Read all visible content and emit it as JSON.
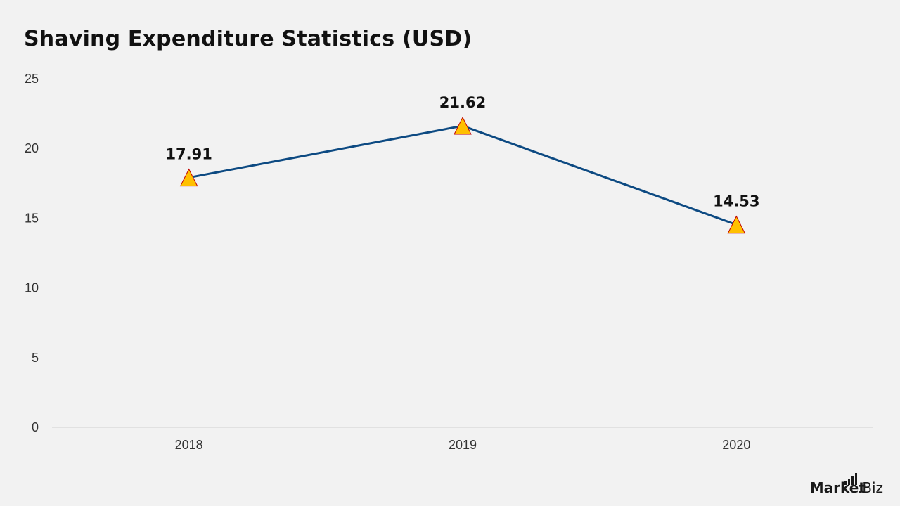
{
  "chart_data": {
    "type": "line",
    "title": "Shaving Expenditure Statistics (USD)",
    "categories": [
      "2018",
      "2019",
      "2020"
    ],
    "series": [
      {
        "values": [
          17.91,
          21.62,
          14.53
        ],
        "labels": [
          "17.91",
          "21.62",
          "14.53"
        ],
        "color": "#0d4a82",
        "marker": "triangle",
        "marker_fill": "#ffc000",
        "marker_stroke": "#c00000"
      }
    ],
    "ylim": [
      0,
      25
    ],
    "yticks": [
      0,
      5,
      10,
      15,
      20,
      25
    ],
    "ytick_labels": [
      "0",
      "5",
      "10",
      "15",
      "20",
      "25"
    ],
    "grid": false,
    "legend": "none"
  },
  "branding": {
    "name_main": "Market",
    "name_suffix": ".Biz"
  }
}
